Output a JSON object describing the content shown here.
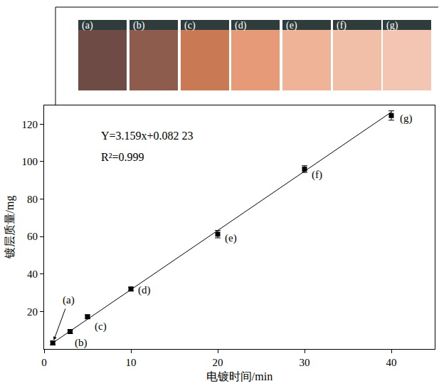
{
  "chart_data": {
    "type": "scatter",
    "x_label": "电镀时间/min",
    "y_label": "镀层质量/mg",
    "x": [
      1,
      3,
      5,
      10,
      20,
      30,
      40
    ],
    "series": [
      {
        "values": [
          3.2,
          9.3,
          17.2,
          32.0,
          61.3,
          96.0,
          124.6
        ],
        "errors": [
          1.0,
          1.0,
          1.0,
          1.0,
          2.0,
          1.8,
          2.5
        ],
        "color": "#000000",
        "marker": "square",
        "point_labels": [
          "(a)",
          "(b)",
          "(c)",
          "(d)",
          "(e)",
          "(f)",
          "(g)"
        ]
      }
    ],
    "fit": {
      "slope": 3.159,
      "intercept": 0.08223,
      "equation": "Y=3.159x+0.082 23",
      "r2": "R²=0.999",
      "color": "#000000"
    },
    "xlim": [
      0,
      45
    ],
    "xticks": [
      0,
      10,
      20,
      30,
      40
    ],
    "ylim": [
      0,
      130
    ],
    "yticks": [
      20,
      40,
      60,
      80,
      100,
      120
    ],
    "grid": false
  }
}
